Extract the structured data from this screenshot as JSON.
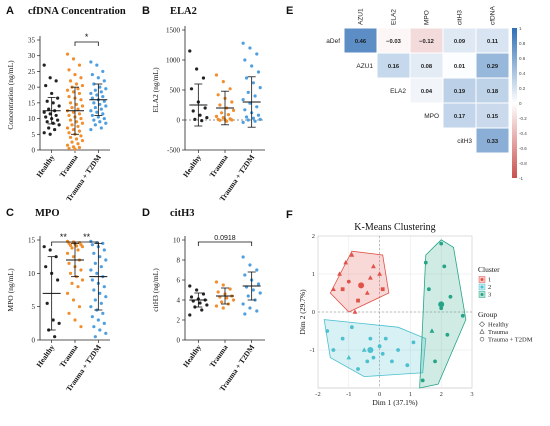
{
  "colors": {
    "healthy": "#222222",
    "trauma": "#f28e2b",
    "t2dm": "#4e9fe0",
    "cluster1": "#e0524a",
    "cluster2": "#4cc0cf",
    "cluster3": "#25a486",
    "heat_pos": "#2f6fb5",
    "heat_neg": "#c9504d"
  },
  "chart_data": [
    {
      "panel": "A",
      "type": "scatter",
      "title": "cfDNA Concentration",
      "ylabel": "Concentration (ng/mL)",
      "ylim": [
        0,
        35
      ],
      "yticks": [
        0,
        5,
        10,
        15,
        20,
        25,
        30,
        35
      ],
      "categories": [
        "Healthy",
        "Trauma",
        "Trauma + T2DM"
      ],
      "series": [
        {
          "name": "Healthy",
          "mean": 12.5,
          "sd": 4.2,
          "values": [
            27,
            23,
            22,
            20.5,
            18,
            16.5,
            15.5,
            15,
            14,
            13,
            12.5,
            12,
            11.5,
            11,
            10.5,
            10,
            9.5,
            9,
            8.5,
            8,
            7,
            6.5,
            5.5,
            5
          ]
        },
        {
          "name": "Trauma",
          "mean": 12.5,
          "sd": 7.5,
          "values": [
            30.5,
            29,
            27,
            25.5,
            24,
            23,
            22,
            21,
            20.5,
            20,
            19.5,
            19,
            18.5,
            18,
            17,
            16.5,
            16,
            15,
            14.5,
            14,
            13.5,
            13,
            12.5,
            12,
            11.5,
            11,
            10.5,
            10,
            9.5,
            9,
            8.5,
            8,
            7.5,
            7,
            6.5,
            6,
            5.5,
            5,
            4.5,
            4,
            3.5,
            3,
            2.5,
            2,
            1.5,
            1,
            0.8,
            0.5,
            0.3
          ]
        },
        {
          "name": "Trauma + T2DM",
          "mean": 16,
          "sd": 5,
          "values": [
            28,
            27,
            25,
            24,
            23,
            22,
            21,
            20,
            19.5,
            19,
            18.5,
            18,
            17.5,
            17,
            16.5,
            16,
            15.5,
            15,
            14.5,
            14,
            13.5,
            13,
            12.5,
            12,
            11.5,
            11,
            10.5,
            10,
            9.5,
            9,
            8.5,
            8,
            7,
            6.5
          ]
        }
      ],
      "significance": [
        {
          "from": 1,
          "to": 2,
          "label": "*"
        }
      ]
    },
    {
      "panel": "B",
      "type": "scatter",
      "title": "ELA2",
      "ylabel": "ELA2 (ng/mL)",
      "ylim": [
        -500,
        1500
      ],
      "yticks": [
        -500,
        0,
        500,
        1000,
        1500
      ],
      "categories": [
        "Healthy",
        "Trauma",
        "Trauma + T2DM"
      ],
      "series": [
        {
          "name": "Healthy",
          "mean": 250,
          "sd": 350,
          "values": [
            1150,
            850,
            700,
            520,
            300,
            200,
            150,
            80,
            40,
            10,
            -10
          ]
        },
        {
          "name": "Trauma",
          "mean": 200,
          "sd": 280,
          "values": [
            750,
            640,
            520,
            420,
            360,
            300,
            250,
            200,
            160,
            120,
            90,
            60,
            40,
            20,
            10,
            5,
            0,
            -5,
            -20
          ]
        },
        {
          "name": "Trauma + T2DM",
          "mean": 300,
          "sd": 420,
          "values": [
            1280,
            1200,
            1100,
            1000,
            900,
            800,
            700,
            620,
            540,
            460,
            400,
            340,
            280,
            220,
            170,
            120,
            80,
            50,
            30,
            10,
            0,
            -20,
            -40
          ]
        }
      ]
    },
    {
      "panel": "C",
      "type": "scatter",
      "title": "MPO",
      "ylabel": "MPO (ng/mL)",
      "ylim": [
        0,
        15
      ],
      "yticks": [
        0,
        5,
        10,
        15
      ],
      "categories": [
        "Healthy",
        "Trauma",
        "Trauma + T2DM"
      ],
      "series": [
        {
          "name": "Healthy",
          "mean": 7,
          "sd": 5.5,
          "values": [
            14,
            13.5,
            12.5,
            11,
            10,
            9,
            5.5,
            3,
            2.5,
            1.5,
            0.5
          ]
        },
        {
          "name": "Trauma",
          "mean": 12,
          "sd": 2.5,
          "values": [
            14.8,
            14.7,
            14.6,
            14.5,
            14.4,
            14.3,
            14.2,
            14.1,
            14,
            13.8,
            13.5,
            13,
            12.5,
            12,
            11.5,
            11,
            10.5,
            10,
            9.5,
            9,
            8.5,
            8,
            7,
            6,
            5,
            4,
            3,
            2
          ]
        },
        {
          "name": "Trauma + T2DM",
          "mean": 9.5,
          "sd": 5,
          "values": [
            14.8,
            14.6,
            14.5,
            14.3,
            14,
            13.5,
            13,
            12.5,
            12,
            11.5,
            11,
            10.5,
            10,
            9.5,
            9,
            8.5,
            8,
            7.5,
            7,
            6.5,
            6,
            5.5,
            5,
            4.5,
            4,
            3.5,
            3,
            2.5,
            2,
            1.5,
            1,
            0.5
          ]
        }
      ],
      "significance": [
        {
          "from": 0,
          "to": 1,
          "label": "**"
        },
        {
          "from": 1,
          "to": 2,
          "label": "**"
        }
      ]
    },
    {
      "panel": "D",
      "type": "scatter",
      "title": "citH3",
      "ylabel": "citH3 (ng/mL)",
      "ylim": [
        0,
        10
      ],
      "yticks": [
        0,
        2,
        4,
        6,
        8,
        10
      ],
      "categories": [
        "Healthy",
        "Trauma",
        "Trauma + T2DM"
      ],
      "series": [
        {
          "name": "Healthy",
          "mean": 4.0,
          "sd": 0.7,
          "values": [
            5.4,
            5.0,
            4.6,
            4.3,
            4.1,
            4.0,
            3.9,
            3.7,
            3.5,
            3.3,
            3.0,
            2.5
          ]
        },
        {
          "name": "Trauma",
          "mean": 4.4,
          "sd": 0.8,
          "values": [
            5.8,
            5.5,
            5.1,
            4.8,
            4.6,
            4.4,
            4.3,
            4.2,
            4.0,
            3.8,
            3.6,
            3.4,
            3.2
          ]
        },
        {
          "name": "Trauma + T2DM",
          "mean": 5.4,
          "sd": 1.4,
          "values": [
            8.3,
            7.5,
            7.0,
            6.5,
            6.0,
            5.6,
            5.3,
            5.0,
            4.7,
            4.4,
            4.0,
            3.6,
            3.2,
            2.9,
            2.6
          ]
        }
      ],
      "significance": [
        {
          "from": 0,
          "to": 2,
          "label": "0.0918"
        }
      ]
    },
    {
      "panel": "E",
      "type": "heatmap",
      "columns": [
        "AZU1",
        "ELA2",
        "MPO",
        "citH3",
        "cfDNA"
      ],
      "rows": [
        "aDef",
        "AZU1",
        "ELA2",
        "MPO",
        "citH3"
      ],
      "values": [
        [
          0.46,
          -0.03,
          -0.12,
          0.09,
          0.11
        ],
        [
          null,
          0.16,
          0.08,
          0.01,
          0.29
        ],
        [
          null,
          null,
          0.04,
          0.19,
          0.18
        ],
        [
          null,
          null,
          null,
          0.17,
          0.15
        ],
        [
          null,
          null,
          null,
          null,
          0.33
        ]
      ],
      "colorbar_ticks": [
        "1",
        "0.8",
        "0.6",
        "0.4",
        "0.2",
        "0",
        "-0.2",
        "-0.4",
        "-0.6",
        "-0.8",
        "-1"
      ],
      "range": [
        -1,
        1
      ]
    },
    {
      "panel": "F",
      "type": "scatter",
      "title": "K-Means Clustering",
      "xlabel": "Dim 1 (37.1%)",
      "ylabel": "Dim 2 (29.7%)",
      "xlim": [
        -2,
        3
      ],
      "ylim": [
        -2,
        2
      ],
      "xticks": [
        -2,
        -1,
        0,
        1,
        2,
        3
      ],
      "yticks": [
        -1,
        0,
        1,
        2
      ],
      "legend": {
        "cluster_title": "Cluster",
        "clusters": [
          "1",
          "2",
          "3"
        ],
        "group_title": "Group",
        "groups": [
          "Healthy",
          "Trauma",
          "Trauma + T2DM"
        ]
      },
      "clusters": [
        {
          "name": "1",
          "hull": [
            [
              -1.6,
              0.5
            ],
            [
              -0.9,
              1.6
            ],
            [
              0.1,
              1.5
            ],
            [
              0.3,
              0.5
            ],
            [
              -1.0,
              0.0
            ]
          ],
          "points": [
            [
              -1.5,
              0.6,
              "t"
            ],
            [
              -1.3,
              1.0,
              "t"
            ],
            [
              -1.1,
              1.3,
              "t"
            ],
            [
              -0.9,
              1.5,
              "t"
            ],
            [
              -1.0,
              0.8,
              "c"
            ],
            [
              -0.6,
              0.7,
              "c"
            ],
            [
              -0.7,
              0.3,
              "h"
            ],
            [
              -0.4,
              0.5,
              "t"
            ],
            [
              -0.2,
              1.2,
              "t"
            ],
            [
              0.0,
              1.0,
              "t"
            ],
            [
              0.1,
              0.6,
              "h"
            ],
            [
              -1.2,
              0.6,
              "h"
            ],
            [
              -0.8,
              0.0,
              "t"
            ],
            [
              -0.3,
              0.9,
              "t"
            ]
          ],
          "center": [
            -0.6,
            0.7
          ]
        },
        {
          "name": "2",
          "hull": [
            [
              -1.8,
              -0.2
            ],
            [
              -1.6,
              -1.2
            ],
            [
              -0.5,
              -1.7
            ],
            [
              1.4,
              -1.6
            ],
            [
              1.5,
              -0.7
            ],
            [
              0.6,
              -0.4
            ],
            [
              -0.6,
              -0.3
            ]
          ],
          "points": [
            [
              -1.7,
              -0.5,
              "c"
            ],
            [
              -1.5,
              -1.0,
              "c"
            ],
            [
              -1.2,
              -0.7,
              "c"
            ],
            [
              -1.0,
              -1.2,
              "t"
            ],
            [
              -0.7,
              -1.5,
              "c"
            ],
            [
              -0.5,
              -1.0,
              "t"
            ],
            [
              -0.3,
              -0.7,
              "c"
            ],
            [
              -0.2,
              -1.2,
              "c"
            ],
            [
              0.0,
              -0.9,
              "c"
            ],
            [
              0.2,
              -0.7,
              "c"
            ],
            [
              0.4,
              -1.3,
              "c"
            ],
            [
              0.6,
              -1.0,
              "c"
            ],
            [
              0.9,
              -1.4,
              "c"
            ],
            [
              1.1,
              -0.8,
              "c"
            ],
            [
              -0.9,
              -0.4,
              "c"
            ],
            [
              0.1,
              -1.1,
              "c"
            ],
            [
              -0.4,
              -1.3,
              "c"
            ]
          ],
          "center": [
            -0.3,
            -1.0
          ]
        },
        {
          "name": "3",
          "hull": [
            [
              1.3,
              -2.0
            ],
            [
              1.5,
              1.5
            ],
            [
              2.0,
              1.9
            ],
            [
              2.4,
              1.7
            ],
            [
              2.8,
              -0.2
            ],
            [
              1.9,
              -1.9
            ]
          ],
          "points": [
            [
              2.0,
              1.8,
              "c"
            ],
            [
              1.5,
              1.3,
              "c"
            ],
            [
              2.1,
              1.2,
              "c"
            ],
            [
              1.6,
              0.6,
              "c"
            ],
            [
              2.3,
              0.4,
              "c"
            ],
            [
              2.0,
              0.1,
              "c"
            ],
            [
              2.7,
              -0.1,
              "c"
            ],
            [
              1.7,
              -0.5,
              "t"
            ],
            [
              1.8,
              -1.3,
              "c"
            ],
            [
              1.4,
              -1.8,
              "c"
            ],
            [
              2.2,
              -0.6,
              "c"
            ]
          ],
          "center": [
            2.0,
            0.2
          ]
        }
      ]
    }
  ]
}
